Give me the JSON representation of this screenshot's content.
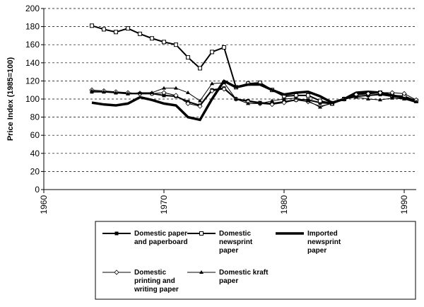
{
  "chart_data": {
    "type": "line",
    "y_label": "Price Index (1985=100)",
    "x": [
      1964,
      1965,
      1966,
      1967,
      1968,
      1969,
      1970,
      1971,
      1972,
      1973,
      1974,
      1975,
      1976,
      1977,
      1978,
      1979,
      1980,
      1981,
      1982,
      1983,
      1984,
      1985,
      1986,
      1987,
      1988,
      1989,
      1990,
      1991
    ],
    "xlim": [
      1960,
      1991
    ],
    "xticks": [
      1960,
      1970,
      1980,
      1990
    ],
    "ylim": [
      0,
      200
    ],
    "yticks": [
      0,
      20,
      40,
      60,
      80,
      100,
      120,
      140,
      160,
      180,
      200
    ],
    "grid": true,
    "series": [
      {
        "name": "Domestic paper and paperboard",
        "color": "#000000",
        "marker": "filled-square",
        "width": 2,
        "values": [
          108,
          108,
          107,
          106,
          106,
          106,
          104,
          103,
          97,
          93,
          110,
          112,
          100,
          98,
          96,
          95,
          97,
          99,
          99,
          96,
          95,
          100,
          103,
          104,
          105,
          103,
          101,
          98
        ]
      },
      {
        "name": "Domestic newsprint paper",
        "color": "#000000",
        "marker": "open-square",
        "width": 2,
        "values": [
          181,
          177,
          174,
          178,
          172,
          167,
          163,
          160,
          146,
          134,
          152,
          157,
          113,
          117,
          118,
          110,
          103,
          104,
          104,
          98,
          95,
          100,
          105,
          106,
          107,
          104,
          103,
          98
        ]
      },
      {
        "name": "Imported newsprint paper",
        "color": "#000000",
        "marker": "none",
        "width": 3.5,
        "values": [
          96,
          94,
          93,
          95,
          102,
          99,
          95,
          93,
          80,
          77,
          100,
          120,
          113,
          116,
          116,
          110,
          105,
          107,
          108,
          103,
          96,
          100,
          107,
          108,
          107,
          104,
          101,
          97
        ]
      },
      {
        "name": "Domestic printing and writing paper",
        "color": "#000000",
        "marker": "open-diamond",
        "width": 1,
        "values": [
          110,
          109,
          108,
          107,
          106,
          106,
          107,
          104,
          95,
          92,
          109,
          111,
          100,
          97,
          95,
          94,
          96,
          99,
          97,
          92,
          95,
          100,
          105,
          106,
          107,
          107,
          106,
          99
        ]
      },
      {
        "name": "Domestic kraft paper",
        "color": "#000000",
        "marker": "filled-triangle",
        "width": 1,
        "values": [
          109,
          108,
          107,
          106,
          107,
          107,
          112,
          112,
          107,
          98,
          117,
          118,
          100,
          95,
          95,
          98,
          100,
          101,
          98,
          91,
          96,
          100,
          102,
          100,
          99,
          101,
          100,
          97
        ]
      }
    ]
  }
}
